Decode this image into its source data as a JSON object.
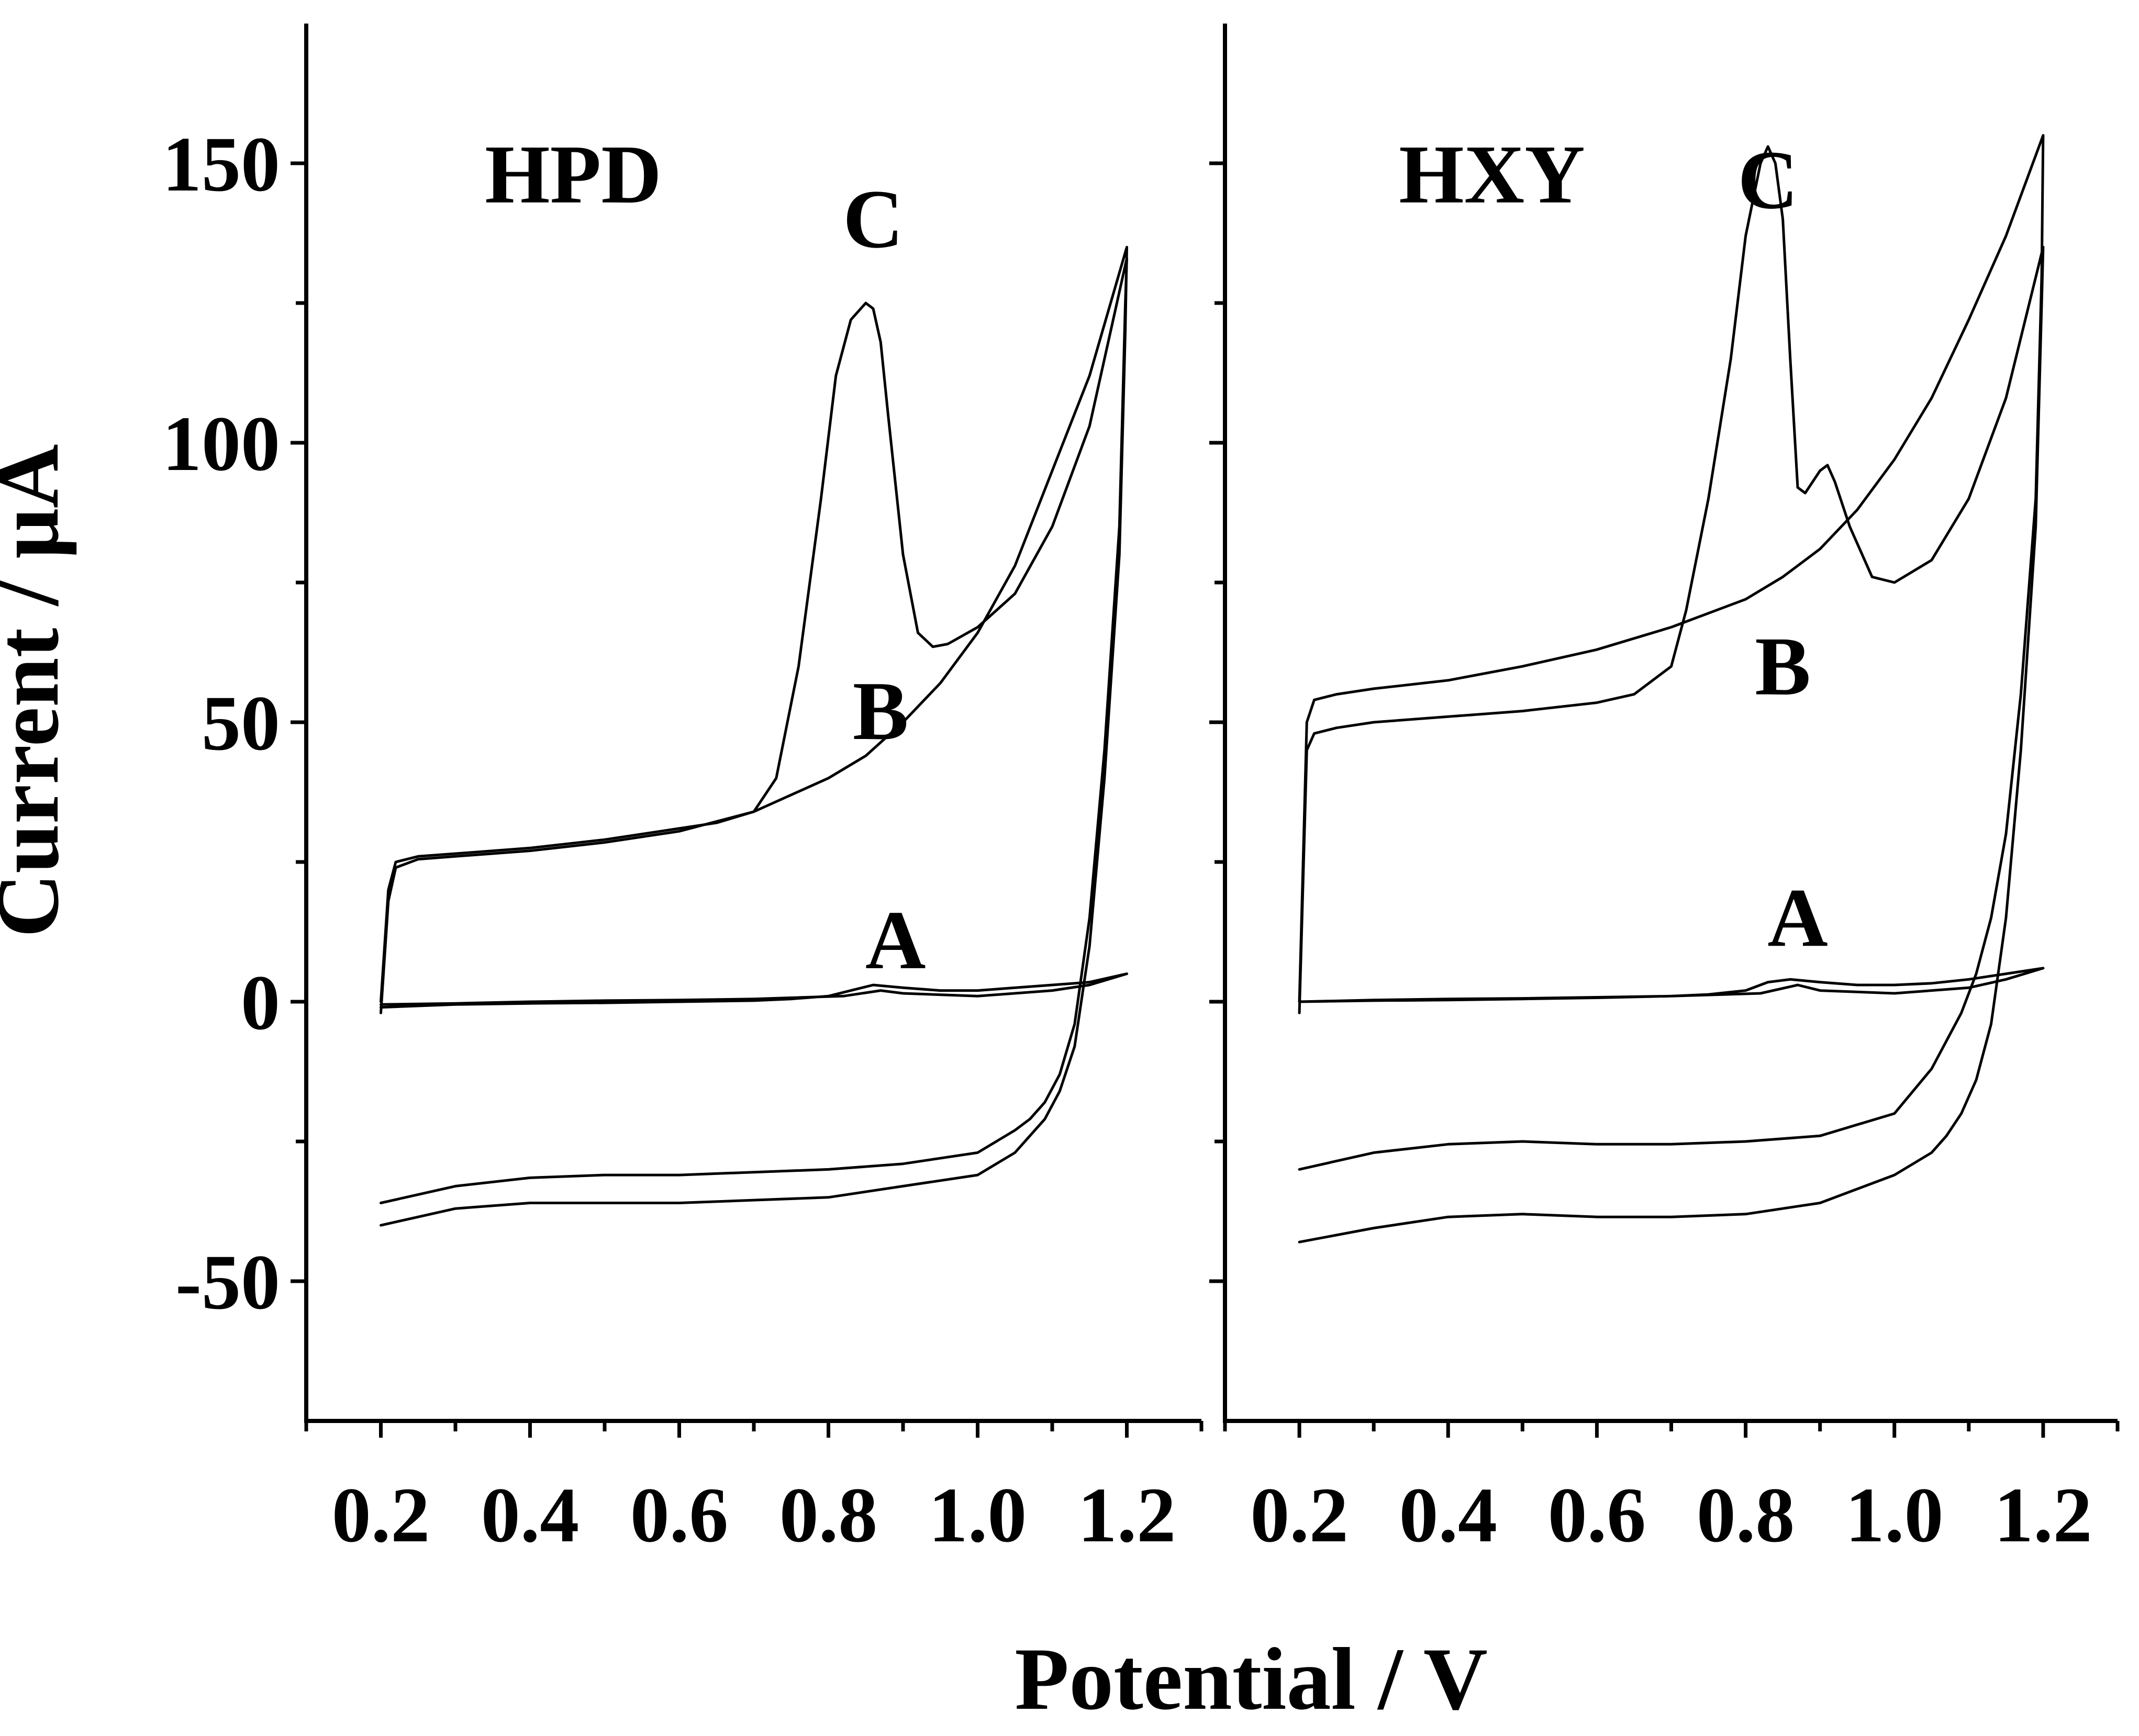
{
  "chart_data": [
    {
      "type": "line",
      "panel_label": "HPD",
      "xlabel": "Potential / V",
      "ylabel": "Current / μA",
      "xlim": [
        0.1,
        1.3
      ],
      "ylim": [
        -75,
        175
      ],
      "x_ticks": [
        "0.2",
        "0.4",
        "0.6",
        "0.8",
        "1.0",
        "1.2"
      ],
      "y_ticks": [
        "-50",
        "0",
        "50",
        "100",
        "150"
      ],
      "grid": false,
      "curve_labels": [
        {
          "text": "C",
          "x": 0.86,
          "y": 135
        },
        {
          "text": "B",
          "x": 0.87,
          "y": 47
        },
        {
          "text": "A",
          "x": 0.89,
          "y": 6
        }
      ],
      "series": [
        {
          "curve": "A",
          "x": [
            0.2,
            0.3,
            0.4,
            0.5,
            0.6,
            0.7,
            0.75,
            0.8,
            0.83,
            0.86,
            0.9,
            0.95,
            1.0,
            1.05,
            1.1,
            1.15,
            1.2,
            1.15,
            1.1,
            1.0,
            0.9,
            0.87,
            0.82,
            0.7,
            0.6,
            0.5,
            0.4,
            0.3,
            0.2
          ],
          "y": [
            -1,
            -0.5,
            -0.3,
            -0.2,
            0,
            0.2,
            0.5,
            1,
            2,
            3,
            2.5,
            2,
            2,
            2.5,
            3,
            3.5,
            5,
            3,
            2,
            1,
            1.5,
            2,
            1,
            0.5,
            0.3,
            0.2,
            0,
            -0.3,
            -0.5
          ]
        },
        {
          "curve": "B",
          "x": [
            0.2,
            0.21,
            0.22,
            0.25,
            0.3,
            0.4,
            0.5,
            0.6,
            0.7,
            0.75,
            0.8,
            0.85,
            0.9,
            0.95,
            1.0,
            1.05,
            1.1,
            1.15,
            1.2,
            1.198,
            1.19,
            1.17,
            1.15,
            1.13,
            1.11,
            1.09,
            1.07,
            1.05,
            1.0,
            0.9,
            0.8,
            0.7,
            0.6,
            0.5,
            0.4,
            0.3,
            0.2
          ],
          "y": [
            -2,
            18,
            24,
            25.5,
            26,
            27,
            28.5,
            30.5,
            34,
            37,
            40,
            44,
            50,
            57,
            66,
            78,
            95,
            112,
            135,
            120,
            80,
            40,
            10,
            -8,
            -16,
            -21,
            -24,
            -27,
            -31,
            -33,
            -35,
            -35.5,
            -36,
            -36,
            -36,
            -37,
            -40
          ]
        },
        {
          "curve": "C",
          "x": [
            0.2,
            0.21,
            0.22,
            0.25,
            0.3,
            0.4,
            0.5,
            0.6,
            0.65,
            0.7,
            0.73,
            0.76,
            0.79,
            0.81,
            0.83,
            0.85,
            0.86,
            0.87,
            0.88,
            0.9,
            0.92,
            0.94,
            0.96,
            1.0,
            1.05,
            1.1,
            1.15,
            1.2,
            1.198,
            1.19,
            1.17,
            1.15,
            1.13,
            1.11,
            1.09,
            1.07,
            1.05,
            1.0,
            0.9,
            0.8,
            0.7,
            0.6,
            0.5,
            0.4,
            0.3,
            0.2
          ],
          "y": [
            0,
            20,
            25,
            26,
            26.5,
            27.5,
            29,
            31,
            32,
            34,
            40,
            60,
            90,
            112,
            122,
            125,
            124,
            118,
            105,
            80,
            66,
            63.5,
            64,
            67,
            73,
            85,
            103,
            133,
            125,
            85,
            45,
            15,
            -4,
            -13,
            -18,
            -21,
            -23,
            -27,
            -29,
            -30,
            -30.5,
            -31,
            -31,
            -31.5,
            -33,
            -36
          ]
        }
      ]
    },
    {
      "type": "line",
      "panel_label": "HXY",
      "xlabel": "Potential / V",
      "xlim": [
        0.1,
        1.3
      ],
      "ylim": [
        -75,
        175
      ],
      "x_ticks": [
        "0.2",
        "0.4",
        "0.6",
        "0.8",
        "1.0",
        "1.2"
      ],
      "grid": false,
      "curve_labels": [
        {
          "text": "C",
          "x": 0.83,
          "y": 142
        },
        {
          "text": "B",
          "x": 0.85,
          "y": 55
        },
        {
          "text": "A",
          "x": 0.87,
          "y": 10
        }
      ],
      "series": [
        {
          "curve": "A",
          "x": [
            0.2,
            0.3,
            0.4,
            0.5,
            0.6,
            0.7,
            0.75,
            0.8,
            0.83,
            0.86,
            0.9,
            0.95,
            1.0,
            1.05,
            1.1,
            1.15,
            1.2,
            1.15,
            1.1,
            1.0,
            0.9,
            0.87,
            0.82,
            0.7,
            0.6,
            0.5,
            0.4,
            0.3,
            0.2
          ],
          "y": [
            0,
            0.2,
            0.3,
            0.5,
            0.7,
            1,
            1.3,
            2,
            3.5,
            4,
            3.5,
            3,
            3,
            3.3,
            4,
            5,
            6,
            4,
            2.5,
            1.5,
            2,
            3,
            1.5,
            1,
            0.8,
            0.6,
            0.5,
            0.3,
            0
          ]
        },
        {
          "curve": "B",
          "x": [
            0.2,
            0.21,
            0.22,
            0.25,
            0.3,
            0.4,
            0.5,
            0.6,
            0.7,
            0.8,
            0.85,
            0.9,
            0.95,
            1.0,
            1.05,
            1.1,
            1.15,
            1.2,
            1.198,
            1.19,
            1.17,
            1.15,
            1.13,
            1.11,
            1.09,
            1.07,
            1.05,
            1.0,
            0.9,
            0.8,
            0.7,
            0.6,
            0.5,
            0.4,
            0.3,
            0.2
          ],
          "y": [
            0,
            50,
            54,
            55,
            56,
            57.5,
            60,
            63,
            67,
            72,
            76,
            81,
            88,
            97,
            108,
            122,
            137,
            155,
            130,
            90,
            55,
            30,
            15,
            5,
            -2,
            -7,
            -12,
            -20,
            -24,
            -25,
            -25.5,
            -25.5,
            -25,
            -25.5,
            -27,
            -30
          ]
        },
        {
          "curve": "C",
          "x": [
            0.2,
            0.21,
            0.22,
            0.25,
            0.3,
            0.4,
            0.5,
            0.6,
            0.65,
            0.7,
            0.72,
            0.75,
            0.78,
            0.8,
            0.82,
            0.83,
            0.84,
            0.85,
            0.86,
            0.87,
            0.88,
            0.9,
            0.91,
            0.92,
            0.94,
            0.97,
            1.0,
            1.05,
            1.1,
            1.15,
            1.2,
            1.198,
            1.19,
            1.17,
            1.15,
            1.13,
            1.11,
            1.09,
            1.07,
            1.05,
            1.0,
            0.9,
            0.8,
            0.7,
            0.6,
            0.5,
            0.4,
            0.3,
            0.2
          ],
          "y": [
            -2,
            45,
            48,
            49,
            50,
            51,
            52,
            53.5,
            55,
            60,
            70,
            90,
            115,
            137,
            150,
            153,
            150,
            140,
            115,
            92,
            91,
            95,
            96,
            93,
            85,
            76,
            75,
            79,
            90,
            108,
            135,
            125,
            85,
            45,
            15,
            -4,
            -14,
            -20,
            -24,
            -27,
            -31,
            -36,
            -38,
            -38.5,
            -38.5,
            -38,
            -38.5,
            -40.5,
            -43
          ]
        }
      ]
    }
  ]
}
